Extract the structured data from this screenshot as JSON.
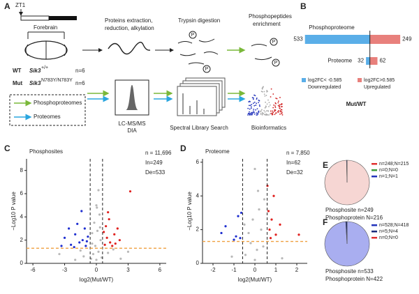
{
  "panel_a": {
    "label": "A",
    "zt": "ZT1",
    "tissue": "Forebrain",
    "step1": [
      "Proteins extraction,",
      "reduction, alkylation"
    ],
    "step2": "Trypsin digestion",
    "step3": [
      "Phosphopeptides",
      "enrichment"
    ],
    "p_icon": "P",
    "groups": [
      {
        "name": "WT",
        "gene": "Sik3",
        "allele": "+/+",
        "n": "n=6"
      },
      {
        "name": "Mut",
        "gene": "Sik3",
        "allele": "N783Y/N783Y",
        "n": "n=6"
      }
    ],
    "legend": [
      {
        "name": "Phosphoproteomes",
        "color": "#7ab83a"
      },
      {
        "name": "Proteomes",
        "color": "#2aa6df"
      }
    ],
    "ms": [
      "LC-MS/MS",
      "DIA"
    ],
    "library": "Spectral Library Search",
    "bio": "Bioinformatics"
  },
  "panel_b": {
    "label": "B",
    "categories": [
      "Phosphoproteome",
      "Proteome"
    ],
    "xlim": [
      -560,
      300
    ],
    "xlabel": "Mut/WT",
    "series": [
      {
        "name": "Downregulated",
        "legend": "log2FC< -0.585",
        "color": "#5aaee8",
        "text_color": "#2233aa",
        "values": [
          533,
          32
        ]
      },
      {
        "name": "Upregulated",
        "legend": "log2FC>0.585",
        "color": "#e8807c",
        "text_color": "#d02020",
        "values": [
          249,
          62
        ]
      }
    ]
  },
  "panel_c": {
    "label": "C",
    "title": "Phosphosites",
    "total": "n = 11,696",
    "up": "In=249",
    "down": "De=533",
    "xlabel": "log2(Mut/WT)",
    "ylabel": "−Log10 P value",
    "xlim": [
      -6.6,
      6.6
    ],
    "ylim": [
      0,
      9
    ],
    "xticks": [
      -6,
      -3,
      0,
      3,
      6
    ],
    "yticks": [
      0,
      2,
      4,
      6,
      8
    ],
    "fc_threshold": 0.585,
    "p_threshold": 1.3,
    "colors": {
      "down": "#1f2fd0",
      "up": "#e0201e",
      "ns": "#b8b8b8",
      "threshold": "#f0a040"
    },
    "points": {
      "x": [
        0,
        0.2,
        -0.3,
        0.4,
        -0.4,
        0.1,
        -0.2,
        0.3,
        0,
        -0.1,
        0.5,
        -0.5,
        -1.2,
        1.1,
        -2,
        2.3,
        -3.5,
        3,
        0.2,
        -0.4,
        0.35,
        -1.5,
        1.6,
        0.05,
        -1,
        -1.3,
        -1.6,
        -2,
        -2.4,
        -1.1,
        -0.8,
        -3,
        -1.8,
        -2.6,
        -1.4,
        -3.3,
        -0.9,
        -2.1,
        0.8,
        1,
        1.3,
        1.7,
        0.9,
        1.2,
        2.2,
        0.7,
        1.5,
        2,
        1.1,
        3.2,
        1.8
      ],
      "y": [
        0.3,
        1,
        0.8,
        2,
        1.7,
        2.8,
        3.5,
        4.2,
        5,
        1.5,
        0.5,
        0.4,
        0.6,
        0.9,
        0.3,
        0.4,
        0.8,
        1,
        6.3,
        2.6,
        3.1,
        1.1,
        1.2,
        4.8,
        1.5,
        2,
        1.8,
        2.5,
        1.6,
        3,
        2.3,
        2.2,
        3.4,
        3,
        4.5,
        1.5,
        1.9,
        1.4,
        1.6,
        2.2,
        1.8,
        2.5,
        3.2,
        3.8,
        2,
        2.7,
        1.5,
        3,
        4.4,
        6.2,
        1.7
      ]
    }
  },
  "panel_d": {
    "label": "D",
    "title": "Proteome",
    "total": "n = 7,850",
    "up": "In=62",
    "down": "De=32",
    "xlabel": "log2(Mut/WT)",
    "ylabel": "−Log10 P value",
    "xlim": [
      -2.5,
      2.5
    ],
    "ylim": [
      0,
      6.2
    ],
    "xticks": [
      -2,
      -1,
      0,
      1,
      2
    ],
    "yticks": [
      0,
      2,
      4,
      6
    ],
    "fc_threshold": 0.585,
    "p_threshold": 1.3,
    "colors": {
      "down": "#1f2fd0",
      "up": "#e0201e",
      "ns": "#b8b8b8",
      "threshold": "#f0a040"
    },
    "points": {
      "x": [
        0,
        0.1,
        -0.2,
        0.3,
        -0.3,
        0.2,
        0,
        -0.1,
        0.4,
        -0.45,
        0.45,
        -0.5,
        0.15,
        -1.1,
        1.3,
        -0.7,
        -0.9,
        -1.4,
        -0.8,
        -1.6,
        -0.65,
        -1,
        0.7,
        0.8,
        0.65,
        1,
        0.9,
        0.6,
        1.2,
        2.1,
        0.75
      ],
      "y": [
        0.2,
        0.8,
        1.2,
        2,
        1.8,
        3.2,
        5.6,
        2.6,
        1,
        0.5,
        3.8,
        2.3,
        4.3,
        0.4,
        0.3,
        1.5,
        1.6,
        2.2,
        2.8,
        1.8,
        3,
        1.4,
        2,
        2.6,
        3.1,
        1.7,
        4,
        4.6,
        2.3,
        1.7,
        1.5
      ]
    }
  },
  "panel_e": {
    "label": "E",
    "caption": [
      "Phosphosite n=249",
      "Phosphoprotein N=216"
    ],
    "caption_color": "#d02020",
    "slices": [
      {
        "label": "n=248;N=215",
        "value": 248,
        "color": "#e03030",
        "fill": "#f6d6d3"
      },
      {
        "label": "n=0;N=0",
        "value": 0,
        "color": "#3a9a3a",
        "fill": "#3a9a3a"
      },
      {
        "label": "n=1;N=1",
        "value": 1,
        "color": "#2233bb",
        "fill": "#2233bb"
      }
    ]
  },
  "panel_f": {
    "label": "F",
    "caption": [
      "Phosphosite n=533",
      "Phosphoprotein N=422"
    ],
    "caption_color": "#2233bb",
    "slices": [
      {
        "label": "n=528;N=418",
        "value": 528,
        "color": "#2233bb",
        "fill": "#a9aef0"
      },
      {
        "label": "n=5;N=4",
        "value": 5,
        "color": "#1a2a7a",
        "fill": "#1a2a7a"
      },
      {
        "label": "n=0;N=0",
        "value": 0,
        "color": "#e03030",
        "fill": "#e03030"
      }
    ]
  }
}
